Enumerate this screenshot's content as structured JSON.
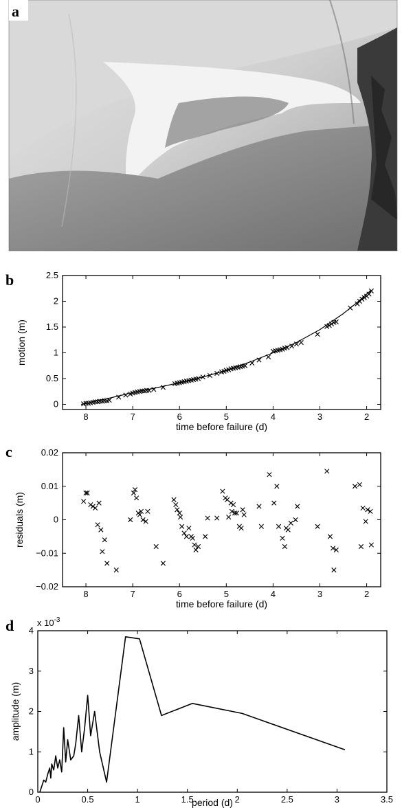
{
  "panels": {
    "a": {
      "label": "a"
    },
    "b": {
      "label": "b"
    },
    "c": {
      "label": "c"
    },
    "d": {
      "label": "d"
    }
  },
  "chart_data": [
    {
      "id": "b",
      "type": "scatter",
      "xlabel": "time before failure (d)",
      "ylabel": "motion (m)",
      "xlim": [
        8.5,
        1.7
      ],
      "ylim": [
        -0.1,
        2.5
      ],
      "x_reversed": true,
      "xticks": [
        8,
        7,
        6,
        5,
        4,
        3,
        2
      ],
      "yticks": [
        0,
        0.5,
        1,
        1.5,
        2,
        2.5
      ],
      "ytick_labels": [
        "0",
        "0.5",
        "1",
        "1.5",
        "2",
        "2.5"
      ],
      "marker": "x",
      "fit_curve": {
        "x": [
          8.1,
          7.8,
          7.5,
          7.0,
          6.5,
          6.0,
          5.5,
          5.0,
          4.5,
          4.0,
          3.5,
          3.0,
          2.5,
          2.2,
          1.9
        ],
        "y": [
          0.0,
          0.06,
          0.12,
          0.23,
          0.32,
          0.42,
          0.53,
          0.66,
          0.82,
          1.0,
          1.2,
          1.45,
          1.76,
          1.98,
          2.22
        ]
      },
      "points": {
        "x": [
          8.05,
          8.0,
          7.95,
          7.9,
          7.85,
          7.8,
          7.75,
          7.7,
          7.65,
          7.6,
          7.55,
          7.5,
          7.3,
          7.15,
          7.05,
          7.0,
          6.95,
          6.9,
          6.85,
          6.8,
          6.75,
          6.7,
          6.65,
          6.55,
          6.35,
          6.1,
          6.05,
          6.0,
          5.95,
          5.9,
          5.85,
          5.8,
          5.75,
          5.7,
          5.65,
          5.6,
          5.5,
          5.35,
          5.2,
          5.1,
          5.05,
          5.0,
          4.95,
          4.9,
          4.85,
          4.8,
          4.75,
          4.7,
          4.65,
          4.6,
          4.45,
          4.3,
          4.1,
          4.0,
          3.95,
          3.9,
          3.85,
          3.8,
          3.75,
          3.7,
          3.6,
          3.5,
          3.4,
          3.05,
          2.85,
          2.8,
          2.75,
          2.7,
          2.65,
          2.35,
          2.2,
          2.15,
          2.1,
          2.05,
          2.0,
          1.95,
          1.9
        ],
        "y": [
          0.01,
          0.02,
          0.02,
          0.03,
          0.04,
          0.05,
          0.05,
          0.06,
          0.06,
          0.07,
          0.07,
          0.08,
          0.14,
          0.18,
          0.2,
          0.22,
          0.23,
          0.24,
          0.25,
          0.26,
          0.26,
          0.27,
          0.27,
          0.29,
          0.33,
          0.4,
          0.41,
          0.42,
          0.43,
          0.44,
          0.45,
          0.46,
          0.47,
          0.48,
          0.49,
          0.5,
          0.53,
          0.56,
          0.6,
          0.63,
          0.64,
          0.66,
          0.67,
          0.69,
          0.7,
          0.71,
          0.72,
          0.73,
          0.74,
          0.75,
          0.8,
          0.86,
          0.92,
          1.03,
          1.04,
          1.05,
          1.06,
          1.07,
          1.09,
          1.1,
          1.13,
          1.17,
          1.2,
          1.36,
          1.51,
          1.53,
          1.56,
          1.59,
          1.6,
          1.87,
          1.95,
          2.0,
          2.04,
          2.07,
          2.1,
          2.14,
          2.2
        ]
      }
    },
    {
      "id": "c",
      "type": "scatter",
      "xlabel": "time before failure (d)",
      "ylabel": "residuals (m)",
      "xlim": [
        8.5,
        1.7
      ],
      "ylim": [
        -0.02,
        0.02
      ],
      "x_reversed": true,
      "xticks": [
        8,
        7,
        6,
        5,
        4,
        3,
        2
      ],
      "yticks": [
        -0.02,
        -0.01,
        0,
        0.01,
        0.02
      ],
      "ytick_labels": [
        "−0.02",
        "−0.01",
        "0",
        "0.01",
        "0.02"
      ],
      "marker": "x",
      "points": {
        "x": [
          8.05,
          8.0,
          7.97,
          7.9,
          7.85,
          7.8,
          7.75,
          7.72,
          7.68,
          7.65,
          7.6,
          7.55,
          7.35,
          7.05,
          6.98,
          6.95,
          6.92,
          6.88,
          6.85,
          6.82,
          6.78,
          6.72,
          6.68,
          6.5,
          6.35,
          6.12,
          6.08,
          6.05,
          6.0,
          5.98,
          5.95,
          5.9,
          5.85,
          5.8,
          5.75,
          5.72,
          5.68,
          5.65,
          5.6,
          5.45,
          5.4,
          5.2,
          5.08,
          5.02,
          4.98,
          4.95,
          4.9,
          4.88,
          4.85,
          4.82,
          4.78,
          4.72,
          4.68,
          4.65,
          4.62,
          4.3,
          4.25,
          4.08,
          3.98,
          3.92,
          3.88,
          3.8,
          3.75,
          3.72,
          3.68,
          3.62,
          3.52,
          3.48,
          3.05,
          2.85,
          2.78,
          2.72,
          2.7,
          2.65,
          2.25,
          2.15,
          2.12,
          2.08,
          2.02,
          1.98,
          1.92,
          1.9
        ],
        "y": [
          0.0055,
          0.008,
          0.008,
          0.0045,
          0.004,
          0.0035,
          -0.0015,
          0.005,
          -0.003,
          -0.0095,
          -0.006,
          -0.013,
          -0.015,
          0.0,
          0.008,
          0.009,
          0.0065,
          0.002,
          0.0015,
          0.0025,
          0.0,
          -0.0005,
          0.0025,
          -0.008,
          -0.013,
          0.006,
          0.0045,
          0.003,
          0.002,
          0.0008,
          -0.002,
          -0.004,
          -0.005,
          -0.0025,
          -0.005,
          -0.0055,
          -0.0075,
          -0.009,
          -0.008,
          -0.005,
          0.0005,
          0.0005,
          0.0085,
          0.0065,
          0.006,
          0.0008,
          0.005,
          0.0025,
          0.0045,
          0.002,
          0.002,
          -0.002,
          -0.0025,
          0.003,
          0.0015,
          0.004,
          -0.002,
          0.0135,
          0.005,
          0.01,
          -0.002,
          -0.0055,
          -0.008,
          -0.0025,
          -0.003,
          -0.001,
          0.0,
          0.004,
          -0.002,
          0.0145,
          -0.005,
          -0.0085,
          -0.015,
          -0.009,
          0.01,
          0.0105,
          -0.008,
          0.0035,
          -0.0005,
          0.003,
          0.0025,
          -0.0075
        ]
      }
    },
    {
      "id": "d",
      "type": "line",
      "xlabel": "period (d)",
      "ylabel": "amplitude (m)",
      "xlim": [
        0,
        3.5
      ],
      "ylim": [
        0,
        4
      ],
      "y_multiplier_label": "x 10",
      "y_multiplier_exp": "-3",
      "xticks": [
        0,
        0.5,
        1,
        1.5,
        2,
        2.5,
        3,
        3.5
      ],
      "xtick_labels": [
        "0",
        "0.5",
        "1",
        "1.5",
        "2",
        "2.5",
        "3",
        "3.5"
      ],
      "yticks": [
        0,
        1,
        2,
        3,
        4
      ],
      "ytick_labels": [
        "0",
        "1",
        "2",
        "3",
        "4"
      ],
      "series": [
        {
          "x": [
            0.02,
            0.04,
            0.06,
            0.08,
            0.1,
            0.12,
            0.13,
            0.14,
            0.16,
            0.18,
            0.2,
            0.22,
            0.24,
            0.26,
            0.28,
            0.3,
            0.33,
            0.36,
            0.38,
            0.41,
            0.44,
            0.47,
            0.5,
            0.53,
            0.57,
            0.62,
            0.69,
            0.88,
            1.02,
            1.24,
            1.55,
            2.05,
            3.08
          ],
          "y": [
            0.0,
            0.15,
            0.3,
            0.25,
            0.45,
            0.6,
            0.35,
            0.7,
            0.55,
            0.9,
            0.6,
            0.8,
            0.5,
            1.6,
            0.75,
            1.3,
            0.8,
            0.9,
            1.2,
            1.9,
            1.0,
            1.6,
            2.4,
            1.4,
            2.0,
            1.0,
            0.25,
            3.85,
            3.8,
            1.9,
            2.2,
            1.95,
            1.05
          ]
        }
      ]
    }
  ]
}
